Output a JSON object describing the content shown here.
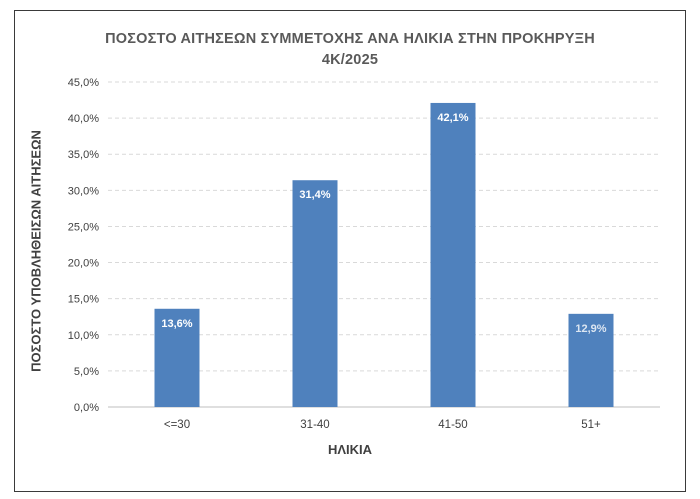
{
  "chart_data": {
    "type": "bar",
    "title_line1": "ΠΟΣΟΣΤΟ ΑΙΤΗΣΕΩΝ ΣΥΜΜΕΤΟΧΗΣ ΑΝΑ ΗΛΙΚΙΑ ΣΤΗΝ ΠΡΟΚΗΡΥΞΗ",
    "title_line2": "4Κ/2025",
    "xlabel": "ΗΛΙΚΙΑ",
    "ylabel": "ΠΟΣΟΣΤΟ ΥΠΟΒΛΗΘΕΙΣΩΝ ΑΙΤΗΣΕΩΝ",
    "categories": [
      "<=30",
      "31-40",
      "41-50",
      "51+"
    ],
    "values": [
      13.6,
      31.4,
      42.1,
      12.9
    ],
    "data_labels": [
      "13,6%",
      "31,4%",
      "42,1%",
      "12,9%"
    ],
    "yticks": [
      "0,0%",
      "5,0%",
      "10,0%",
      "15,0%",
      "20,0%",
      "25,0%",
      "30,0%",
      "35,0%",
      "40,0%",
      "45,0%"
    ],
    "ylim": [
      0,
      45
    ],
    "grid": true,
    "bar_color": "#4f81bd",
    "grid_color": "#d9d9d9"
  }
}
